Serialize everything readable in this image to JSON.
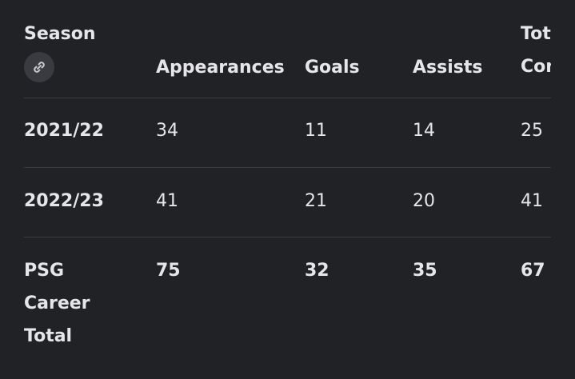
{
  "table": {
    "columns": [
      "Season",
      "Appearances",
      "Goals",
      "Assists",
      "Total Contributions"
    ],
    "rows": [
      [
        "2021/22",
        34,
        11,
        14,
        25
      ],
      [
        "2022/23",
        41,
        21,
        20,
        41
      ],
      [
        "PSG Career Total",
        75,
        32,
        35,
        67
      ]
    ]
  }
}
